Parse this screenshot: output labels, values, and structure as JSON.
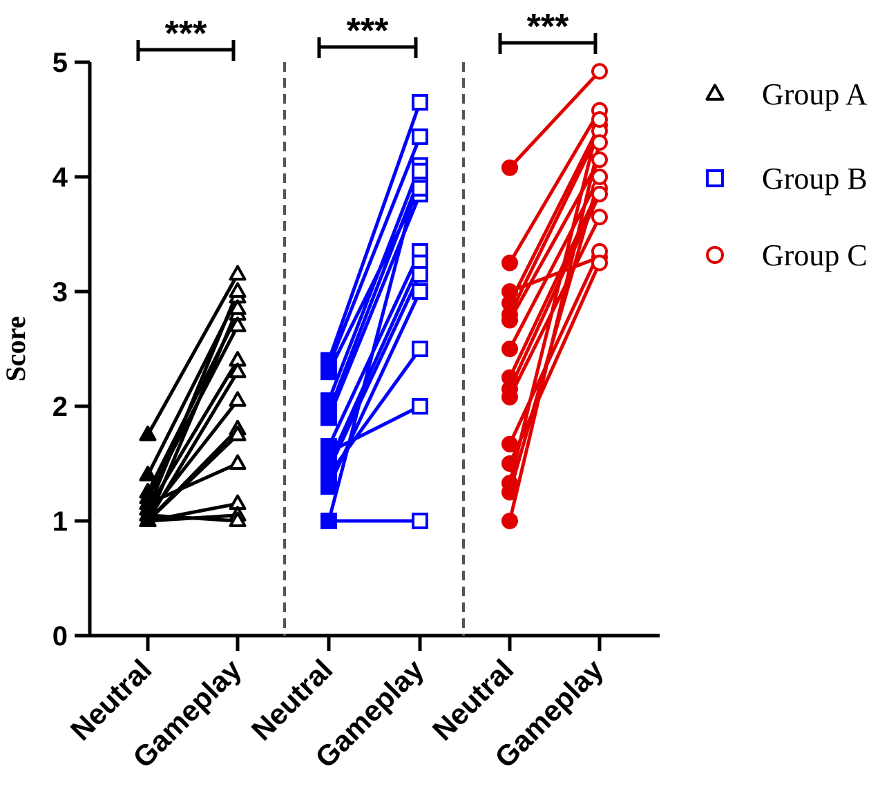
{
  "chart_data": {
    "type": "line",
    "title": "",
    "xlabel": "",
    "ylabel": "Score",
    "ylim": [
      0,
      5
    ],
    "yticks": [
      "0",
      "1",
      "2",
      "3",
      "4",
      "5"
    ],
    "categories": [
      "Neutral",
      "Gameplay",
      "Neutral",
      "Gameplay",
      "Neutral",
      "Gameplay"
    ],
    "significance": [
      "***",
      "***",
      "***"
    ],
    "groups": [
      {
        "name": "Group A",
        "marker": "triangle",
        "color": "#000000",
        "pairs": [
          [
            1.75,
            3.15
          ],
          [
            1.4,
            2.95
          ],
          [
            1.25,
            2.8
          ],
          [
            1.2,
            2.7
          ],
          [
            1.1,
            2.4
          ],
          [
            1.05,
            2.05
          ],
          [
            1.0,
            1.8
          ],
          [
            1.0,
            1.75
          ],
          [
            1.15,
            1.5
          ],
          [
            1.0,
            1.15
          ],
          [
            1.0,
            1.05
          ],
          [
            1.05,
            1.0
          ],
          [
            1.0,
            2.85
          ],
          [
            1.1,
            3.0
          ],
          [
            1.0,
            2.3
          ]
        ]
      },
      {
        "name": "Group B",
        "marker": "square",
        "color": "#0000ff",
        "pairs": [
          [
            2.4,
            4.65
          ],
          [
            2.35,
            4.35
          ],
          [
            2.05,
            4.1
          ],
          [
            1.95,
            4.0
          ],
          [
            1.9,
            3.85
          ],
          [
            1.65,
            3.35
          ],
          [
            1.5,
            3.25
          ],
          [
            1.45,
            3.15
          ],
          [
            1.3,
            3.0
          ],
          [
            1.4,
            2.5
          ],
          [
            1.6,
            2.0
          ],
          [
            1.0,
            1.0
          ],
          [
            2.3,
            3.9
          ],
          [
            1.0,
            4.05
          ]
        ]
      },
      {
        "name": "Group C",
        "marker": "circle",
        "color": "#e00000",
        "pairs": [
          [
            4.08,
            4.92
          ],
          [
            3.25,
            4.58
          ],
          [
            3.0,
            3.3
          ],
          [
            2.9,
            4.45
          ],
          [
            2.8,
            4.4
          ],
          [
            2.75,
            4.15
          ],
          [
            2.5,
            4.0
          ],
          [
            2.25,
            3.9
          ],
          [
            2.15,
            3.85
          ],
          [
            2.08,
            3.65
          ],
          [
            1.67,
            3.35
          ],
          [
            1.5,
            3.25
          ],
          [
            1.33,
            4.5
          ],
          [
            1.25,
            4.0
          ],
          [
            1.0,
            4.3
          ]
        ]
      }
    ],
    "legend": [
      "Group A",
      "Group B",
      "Group C"
    ]
  }
}
